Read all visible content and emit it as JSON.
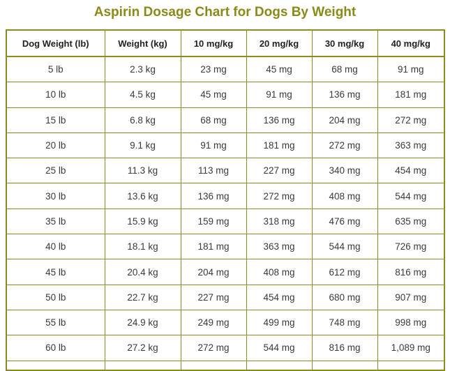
{
  "title": "Aspirin Dosage Chart for Dogs By Weight",
  "colors": {
    "title": "#8a8a1a",
    "border": "#8c8c1e"
  },
  "headers": [
    "Dog Weight (lb)",
    "Weight (kg)",
    "10 mg/kg",
    "20 mg/kg",
    "30 mg/kg",
    "40 mg/kg"
  ],
  "rows": [
    [
      "5 lb",
      "2.3 kg",
      "23 mg",
      "45 mg",
      "68 mg",
      "91 mg"
    ],
    [
      "10 lb",
      "4.5 kg",
      "45 mg",
      "91 mg",
      "136 mg",
      "181 mg"
    ],
    [
      "15 lb",
      "6.8 kg",
      "68 mg",
      "136 mg",
      "204 mg",
      "272 mg"
    ],
    [
      "20 lb",
      "9.1 kg",
      "91 mg",
      "181 mg",
      "272 mg",
      "363 mg"
    ],
    [
      "25 lb",
      "11.3 kg",
      "113 mg",
      "227 mg",
      "340 mg",
      "454 mg"
    ],
    [
      "30 lb",
      "13.6 kg",
      "136 mg",
      "272 mg",
      "408 mg",
      "544 mg"
    ],
    [
      "35 lb",
      "15.9 kg",
      "159 mg",
      "318 mg",
      "476 mg",
      "635 mg"
    ],
    [
      "40 lb",
      "18.1 kg",
      "181 mg",
      "363 mg",
      "544 mg",
      "726 mg"
    ],
    [
      "45 lb",
      "20.4 kg",
      "204 mg",
      "408 mg",
      "612 mg",
      "816 mg"
    ],
    [
      "50 lb",
      "22.7 kg",
      "227 mg",
      "454 mg",
      "680 mg",
      "907 mg"
    ],
    [
      "55 lb",
      "24.9 kg",
      "249 mg",
      "499 mg",
      "748 mg",
      "998 mg"
    ],
    [
      "60 lb",
      "27.2 kg",
      "272 mg",
      "544 mg",
      "816 mg",
      "1,089 mg"
    ]
  ]
}
